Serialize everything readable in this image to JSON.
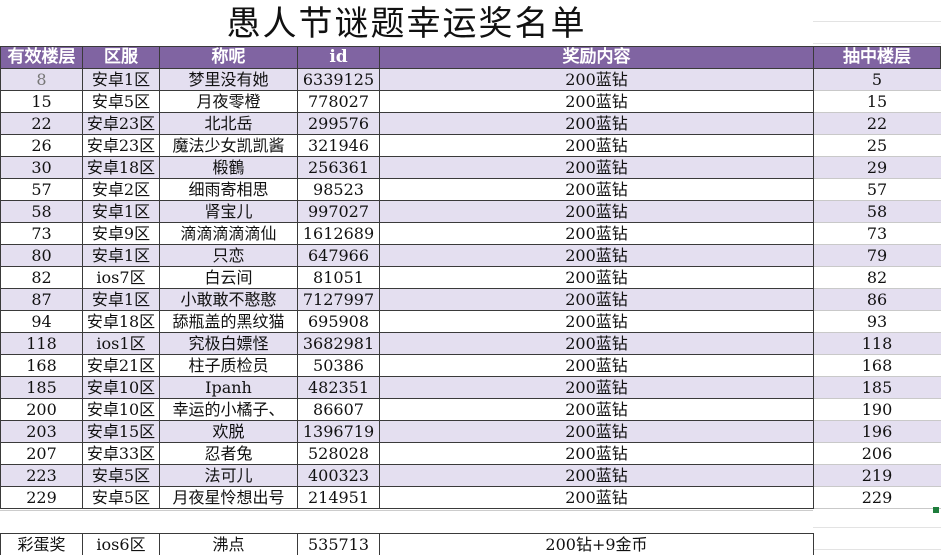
{
  "title": "愚人节谜题幸运奖名单",
  "headers": {
    "floor": "有效楼层",
    "server": "区服",
    "nickname": "称呢",
    "id": "id",
    "reward": "奖励内容",
    "draw_floor": "抽中楼层"
  },
  "rows": [
    {
      "floor": "8",
      "server": "安卓1区",
      "nickname": "梦里没有她",
      "id": "6339125",
      "reward": "200蓝钻",
      "draw": "5"
    },
    {
      "floor": "15",
      "server": "安卓5区",
      "nickname": "月夜零橙",
      "id": "778027",
      "reward": "200蓝钻",
      "draw": "15"
    },
    {
      "floor": "22",
      "server": "安卓23区",
      "nickname": "北北岳",
      "id": "299576",
      "reward": "200蓝钻",
      "draw": "22"
    },
    {
      "floor": "26",
      "server": "安卓23区",
      "nickname": "魔法少女凯凯酱",
      "id": "321946",
      "reward": "200蓝钻",
      "draw": "25"
    },
    {
      "floor": "30",
      "server": "安卓18区",
      "nickname": "椴鶴",
      "id": "256361",
      "reward": "200蓝钻",
      "draw": "29"
    },
    {
      "floor": "57",
      "server": "安卓2区",
      "nickname": "细雨寄相思",
      "id": "98523",
      "reward": "200蓝钻",
      "draw": "57"
    },
    {
      "floor": "58",
      "server": "安卓1区",
      "nickname": "肾宝儿",
      "id": "997027",
      "reward": "200蓝钻",
      "draw": "58"
    },
    {
      "floor": "73",
      "server": "安卓9区",
      "nickname": "滴滴滴滴滴仙",
      "id": "1612689",
      "reward": "200蓝钻",
      "draw": "73"
    },
    {
      "floor": "80",
      "server": "安卓1区",
      "nickname": "只恋",
      "id": "647966",
      "reward": "200蓝钻",
      "draw": "79"
    },
    {
      "floor": "82",
      "server": "ios7区",
      "nickname": "白云间",
      "id": "81051",
      "reward": "200蓝钻",
      "draw": "82"
    },
    {
      "floor": "87",
      "server": "安卓1区",
      "nickname": "小敢敢不憨憨",
      "id": "7127997",
      "reward": "200蓝钻",
      "draw": "86"
    },
    {
      "floor": "94",
      "server": "安卓18区",
      "nickname": "舔瓶盖的黑纹猫",
      "id": "695908",
      "reward": "200蓝钻",
      "draw": "93"
    },
    {
      "floor": "118",
      "server": "ios1区",
      "nickname": "究极白嫖怪",
      "id": "3682981",
      "reward": "200蓝钻",
      "draw": "118"
    },
    {
      "floor": "168",
      "server": "安卓21区",
      "nickname": "柱子质检员",
      "id": "50386",
      "reward": "200蓝钻",
      "draw": "168"
    },
    {
      "floor": "185",
      "server": "安卓10区",
      "nickname": "Ipanh",
      "id": "482351",
      "reward": "200蓝钻",
      "draw": "185"
    },
    {
      "floor": "200",
      "server": "安卓10区",
      "nickname": "幸运的小橘子、",
      "id": "86607",
      "reward": "200蓝钻",
      "draw": "190"
    },
    {
      "floor": "203",
      "server": "安卓15区",
      "nickname": "欢脱",
      "id": "1396719",
      "reward": "200蓝钻",
      "draw": "196"
    },
    {
      "floor": "207",
      "server": "安卓33区",
      "nickname": "忍者兔",
      "id": "528028",
      "reward": "200蓝钻",
      "draw": "206"
    },
    {
      "floor": "223",
      "server": "安卓5区",
      "nickname": "法可儿",
      "id": "400323",
      "reward": "200蓝钻",
      "draw": "219"
    },
    {
      "floor": "229",
      "server": "安卓5区",
      "nickname": "月夜星怜想出号",
      "id": "214951",
      "reward": "200蓝钻",
      "draw": "229"
    }
  ],
  "bonus": {
    "label": "彩蛋奖",
    "server": "ios6区",
    "nickname": "沸点",
    "id": "535713",
    "reward": "200钻+9金币"
  }
}
